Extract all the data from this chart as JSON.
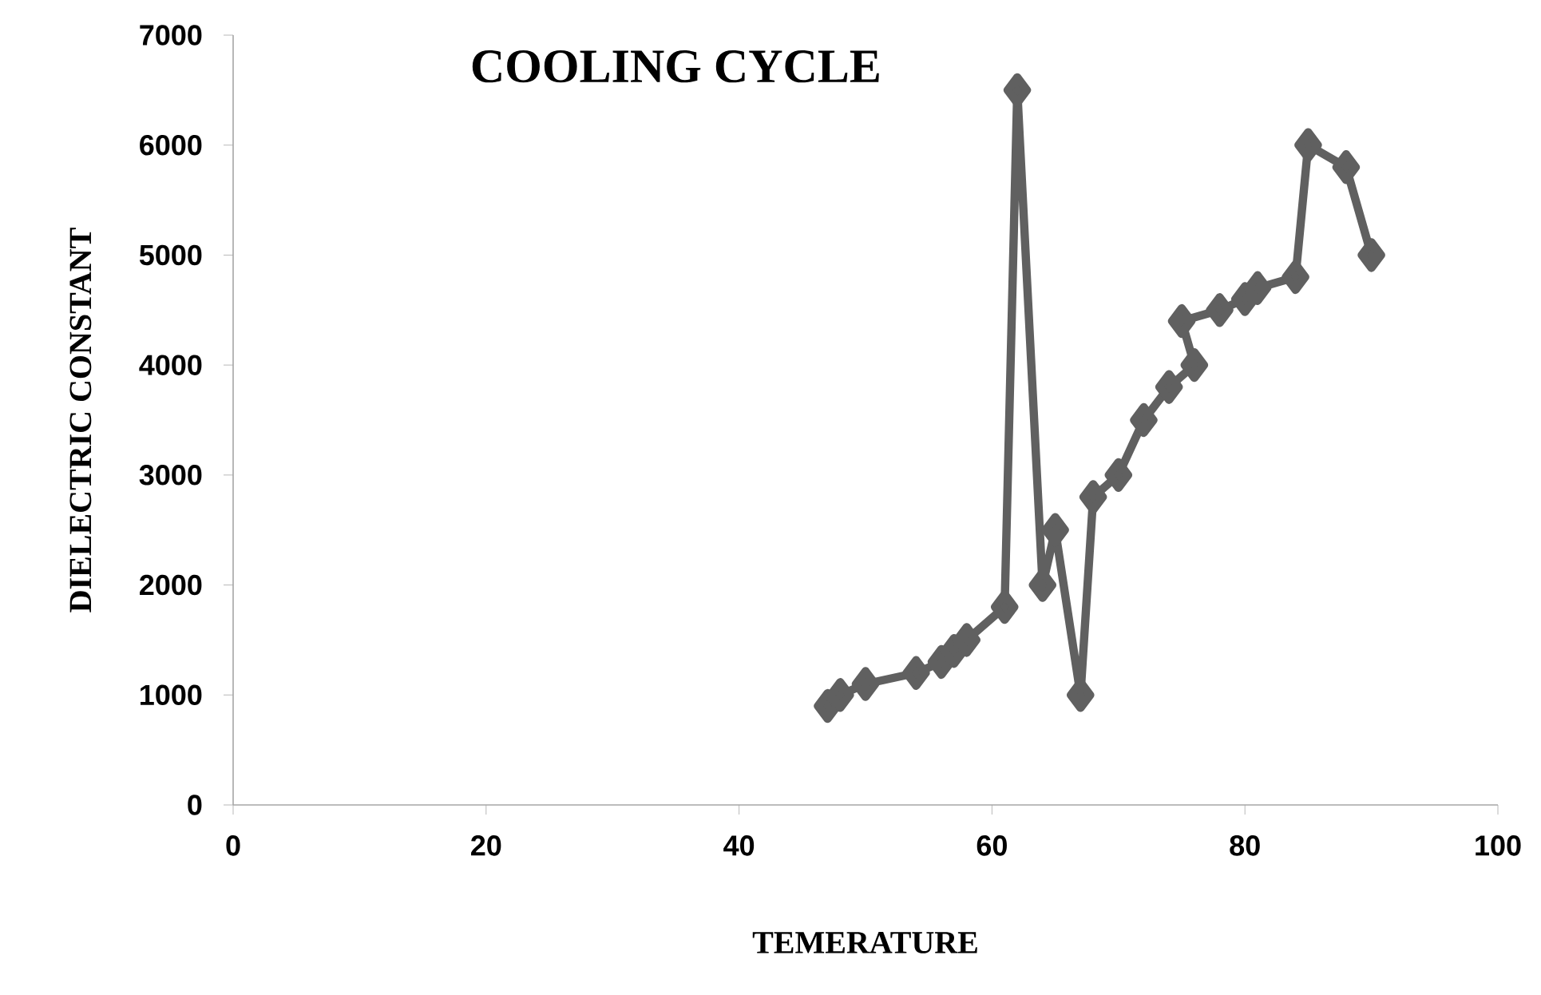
{
  "chart_data": {
    "type": "line",
    "title": "COOLING CYCLE",
    "xlabel": "TEMERATURE",
    "ylabel": "DIELECTRIC CONSTANT",
    "xlim": [
      0,
      100
    ],
    "xticks": [
      0,
      20,
      40,
      60,
      80,
      100
    ],
    "ylim": [
      0,
      7000
    ],
    "yticks": [
      0,
      1000,
      2000,
      3000,
      4000,
      5000,
      6000,
      7000
    ],
    "grid": false,
    "marker": "diamond",
    "line_style": "solid",
    "series": [
      {
        "color": "#606060",
        "x": [
          47,
          48,
          50,
          54,
          56,
          57,
          58,
          61,
          62,
          64,
          65,
          67,
          68,
          70,
          72,
          74,
          76,
          75,
          78,
          80,
          81,
          84,
          85,
          88,
          90
        ],
        "values": [
          900,
          1000,
          1100,
          1200,
          1300,
          1400,
          1500,
          1800,
          6500,
          2000,
          2500,
          1000,
          2800,
          3000,
          3500,
          3800,
          4000,
          4400,
          4500,
          4600,
          4700,
          4800,
          6000,
          5800,
          5000
        ]
      }
    ]
  }
}
